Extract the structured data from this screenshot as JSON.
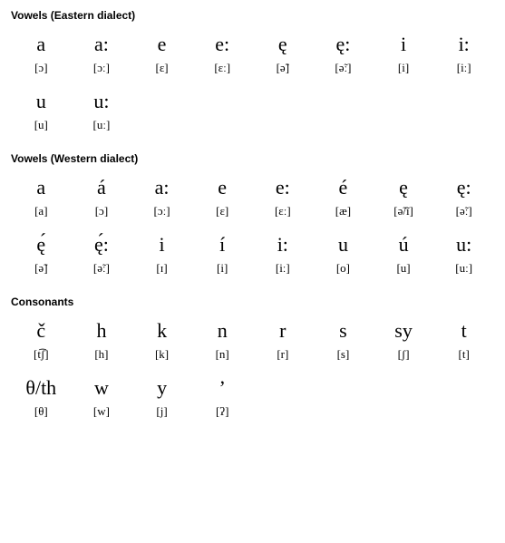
{
  "sections": [
    {
      "title": "Vowels (Eastern dialect)",
      "rows": [
        {
          "glyphs": [
            "a",
            "a:",
            "e",
            "e:",
            "ę",
            "ę:",
            "i",
            "i:"
          ],
          "ipa": [
            "[ɔ]",
            "[ɔː]",
            "[ɛ]",
            "[ɛː]",
            "[ə̃]",
            "[ə̃ː]",
            "[i]",
            "[iː]"
          ]
        },
        {
          "glyphs": [
            "u",
            "u:"
          ],
          "ipa": [
            "[u]",
            "[uː]"
          ]
        }
      ]
    },
    {
      "title": "Vowels (Western dialect)",
      "rows": [
        {
          "glyphs": [
            "a",
            "á",
            "a:",
            "e",
            "e:",
            "é",
            "ę",
            "ę:"
          ],
          "ipa": [
            "[a]",
            "[ɔ]",
            "[ɔː]",
            "[ɛ]",
            "[ɛː]",
            "[æ]",
            "[ə̃/ĩ]",
            "[ə̃ː]"
          ]
        },
        {
          "glyphs": [
            "ę́",
            "ę́:",
            "i",
            "í",
            "i:",
            "u",
            "ú",
            "u:"
          ],
          "ipa": [
            "[ə̃]",
            "[ə̃ː]",
            "[ɪ]",
            "[i]",
            "[iː]",
            "[o]",
            "[u]",
            "[uː]"
          ]
        }
      ]
    },
    {
      "title": "Consonants",
      "rows": [
        {
          "glyphs": [
            "č",
            "h",
            "k",
            "n",
            "r",
            "s",
            "sy",
            "t"
          ],
          "ipa": [
            "[t͡ʃ]",
            "[h]",
            "[k]",
            "[n]",
            "[r]",
            "[s]",
            "[ʃ]",
            "[t]"
          ]
        },
        {
          "glyphs": [
            "θ/th",
            "w",
            "y",
            "’"
          ],
          "ipa": [
            "[θ]",
            "[w]",
            "[j]",
            "[ʔ]"
          ]
        }
      ]
    }
  ]
}
